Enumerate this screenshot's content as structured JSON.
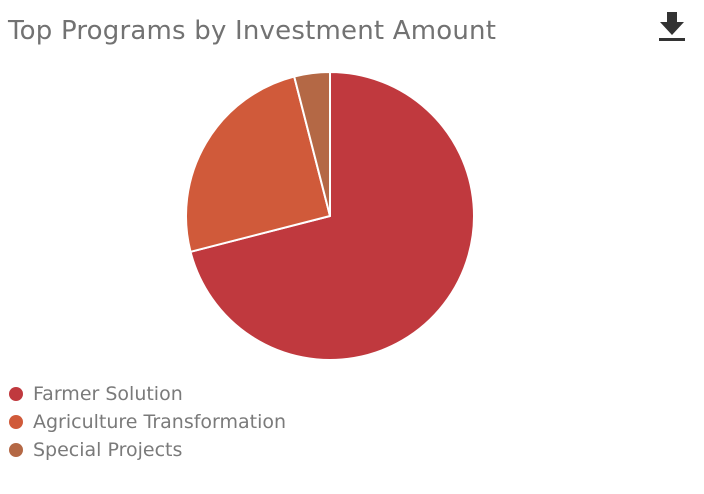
{
  "title": "Top Programs by Investment Amount",
  "toolbar": {
    "download_icon": "download-icon"
  },
  "chart_data": {
    "type": "pie",
    "title": "Top Programs by Investment Amount",
    "legend_position": "bottom-left",
    "start_angle_deg": 0,
    "direction": "clockwise",
    "slices": [
      {
        "name": "Farmer Solution",
        "value": 71.0,
        "color": "#c0393e"
      },
      {
        "name": "Agriculture Transformation",
        "value": 25.0,
        "color": "#d05a3a"
      },
      {
        "name": "Special Projects",
        "value": 4.0,
        "color": "#b46845"
      }
    ]
  }
}
